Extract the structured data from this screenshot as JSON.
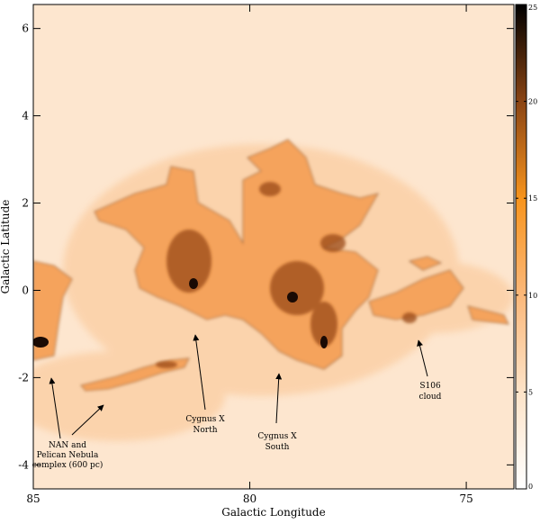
{
  "chart_data": {
    "type": "heatmap",
    "xlabel": "Galactic Longitude",
    "ylabel": "Galactic Latitude",
    "xlim": [
      85,
      73.9
    ],
    "ylim": [
      -4.55,
      6.55
    ],
    "xticks": [
      85,
      80,
      75
    ],
    "yticks": [
      -4,
      -2,
      0,
      2,
      4,
      6
    ],
    "colorbar": {
      "lim": [
        0,
        25
      ],
      "ticks": [
        0,
        5,
        10,
        15,
        20,
        25
      ],
      "cmap": [
        "#ffffff",
        "#fde3c8",
        "#fbb87a",
        "#f7941d",
        "#8a4414",
        "#000000"
      ]
    },
    "annotations": [
      {
        "lines": [
          "NAN and",
          "Pelican Nebula",
          "complex (600 pc)"
        ]
      },
      {
        "lines": [
          "Cygnus X",
          "North"
        ]
      },
      {
        "lines": [
          "Cygnus X",
          "South"
        ]
      },
      {
        "lines": [
          "S106",
          "cloud"
        ]
      }
    ]
  }
}
